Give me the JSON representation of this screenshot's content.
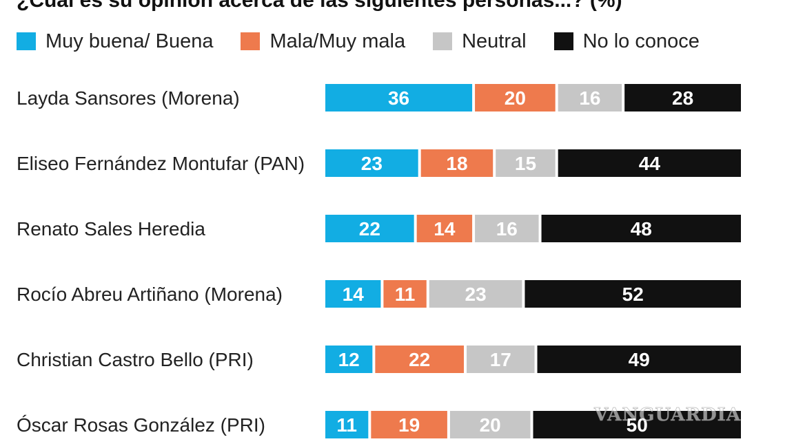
{
  "chart_data": {
    "type": "bar",
    "orientation": "horizontal",
    "stacked": true,
    "title": "¿Cuál es su opinión acerca de las siguientes personas...? (%)",
    "xlabel": "",
    "ylabel": "",
    "xlim": [
      0,
      100
    ],
    "legend_position": "top",
    "categories": [
      "Layda Sansores (Morena)",
      "Eliseo Fernández Montufar (PAN)",
      "Renato Sales Heredia",
      "Rocío Abreu Artiñano (Morena)",
      "Christian Castro Bello (PRI)",
      "Óscar Rosas González (PRI)"
    ],
    "series": [
      {
        "name": "Muy buena/ Buena",
        "color": "#12ADE3",
        "label_color": "#ffffff",
        "values": [
          36,
          23,
          22,
          14,
          12,
          11
        ]
      },
      {
        "name": "Mala/Muy mala",
        "color": "#EE7A4D",
        "label_color": "#ffffff",
        "values": [
          20,
          18,
          14,
          11,
          22,
          19
        ]
      },
      {
        "name": "Neutral",
        "color": "#C6C6C6",
        "label_color": "#ffffff",
        "values": [
          16,
          15,
          16,
          23,
          17,
          20
        ]
      },
      {
        "name": "No lo conoce",
        "color": "#111111",
        "label_color": "#ffffff",
        "values": [
          28,
          44,
          48,
          52,
          49,
          50
        ]
      }
    ]
  },
  "watermark": "VANGUARDIA"
}
